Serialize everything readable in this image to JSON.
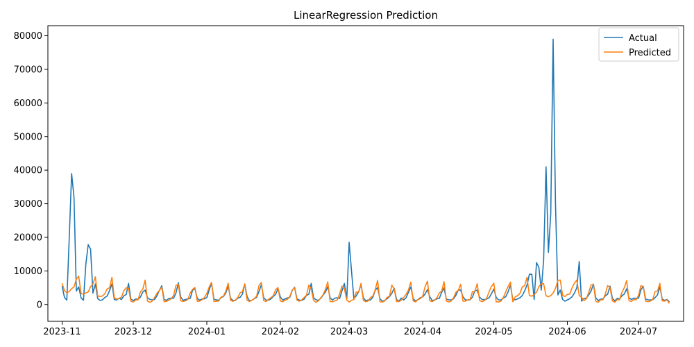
{
  "chart_data": {
    "type": "line",
    "title": "LinearRegression Prediction",
    "xlabel": "",
    "ylabel": "",
    "x_start": "2023-11-01",
    "x_end": "2024-07-14",
    "xlim": [
      "2023-10-26",
      "2024-07-20"
    ],
    "ylim": [
      -5000,
      83000
    ],
    "yticks": [
      0,
      10000,
      20000,
      30000,
      40000,
      50000,
      60000,
      70000,
      80000
    ],
    "xticks": [
      "2023-11-01",
      "2023-12-01",
      "2024-01-01",
      "2024-02-01",
      "2024-03-01",
      "2024-04-01",
      "2024-05-01",
      "2024-06-01",
      "2024-07-01"
    ],
    "xtick_labels": [
      "2023-11",
      "2023-12",
      "2024-01",
      "2024-02",
      "2024-03",
      "2024-04",
      "2024-05",
      "2024-06",
      "2024-07"
    ],
    "grid": false,
    "legend_position": "top-right",
    "series": [
      {
        "name": "Actual",
        "color": "#1f77b4",
        "spikes": [
          {
            "date": "2023-11-04",
            "value": 20000
          },
          {
            "date": "2023-11-05",
            "value": 39000
          },
          {
            "date": "2023-11-06",
            "value": 32000
          },
          {
            "date": "2023-11-07",
            "value": 4000
          },
          {
            "date": "2023-11-11",
            "value": 12000
          },
          {
            "date": "2023-11-12",
            "value": 17800
          },
          {
            "date": "2023-11-13",
            "value": 16500
          },
          {
            "date": "2024-03-01",
            "value": 18500
          },
          {
            "date": "2024-03-02",
            "value": 10000
          },
          {
            "date": "2024-05-16",
            "value": 9000
          },
          {
            "date": "2024-05-17",
            "value": 9000
          },
          {
            "date": "2024-05-19",
            "value": 12500
          },
          {
            "date": "2024-05-20",
            "value": 11000
          },
          {
            "date": "2024-05-22",
            "value": 13000
          },
          {
            "date": "2024-05-23",
            "value": 41000
          },
          {
            "date": "2024-05-24",
            "value": 15500
          },
          {
            "date": "2024-05-25",
            "value": 27000
          },
          {
            "date": "2024-05-26",
            "value": 79000
          },
          {
            "date": "2024-05-27",
            "value": 30000
          },
          {
            "date": "2024-06-06",
            "value": 12800
          }
        ]
      },
      {
        "name": "Predicted",
        "color": "#ff7f0e"
      }
    ]
  }
}
